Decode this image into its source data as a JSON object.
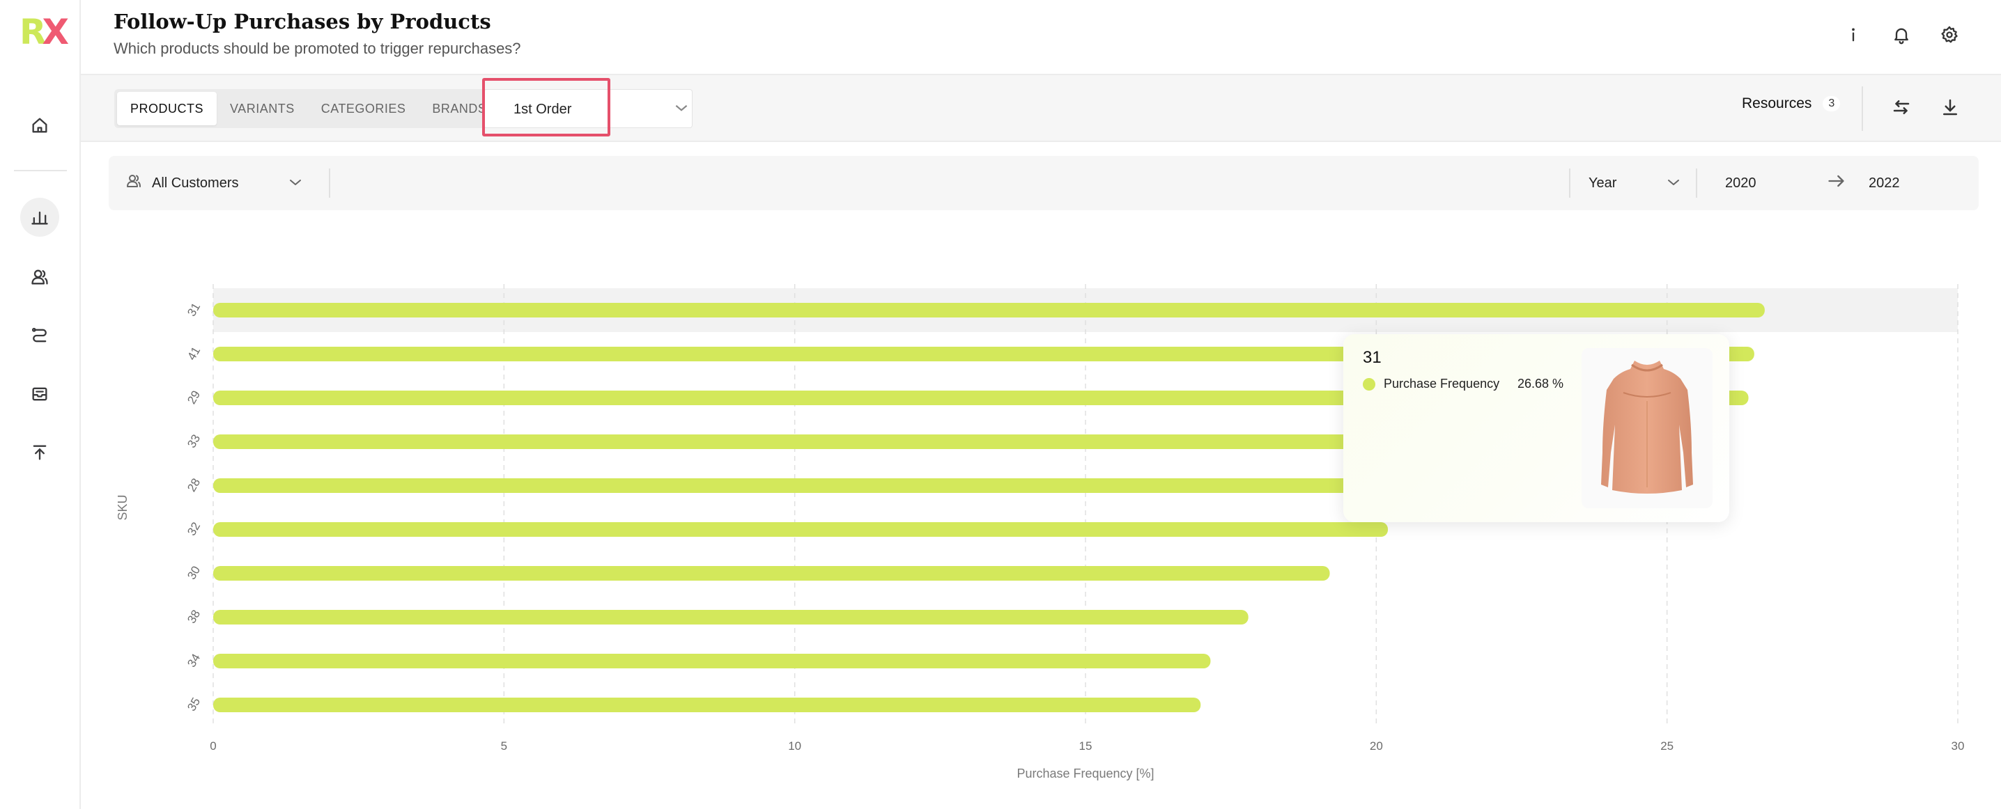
{
  "app": {
    "logo_r": "R",
    "logo_x": "X"
  },
  "header": {
    "title": "Follow-Up Purchases by Products",
    "subtitle": "Which products should be promoted to trigger repurchases?"
  },
  "sidebar": {
    "items": [
      {
        "icon": "home-icon",
        "active": false
      },
      {
        "icon": "bar-chart-icon",
        "active": true
      },
      {
        "icon": "users-icon",
        "active": false
      },
      {
        "icon": "route-icon",
        "active": false
      },
      {
        "icon": "inbox-icon",
        "active": false
      },
      {
        "icon": "upload-icon",
        "active": false
      }
    ]
  },
  "toolbar": {
    "tabs": [
      {
        "label": "PRODUCTS",
        "active": true
      },
      {
        "label": "VARIANTS",
        "active": false
      },
      {
        "label": "CATEGORIES",
        "active": false
      },
      {
        "label": "BRANDS",
        "active": false
      }
    ],
    "order_select": "1st Order",
    "resources_label": "Resources",
    "resources_count": "3"
  },
  "filters": {
    "segment": "All Customers",
    "granularity": "Year",
    "from": "2020",
    "to": "2022"
  },
  "colors": {
    "bar": "#d3e85b",
    "highlight": "#e5506b",
    "accent_red": "#ef5a72",
    "accent_green": "#cde85a"
  },
  "chart_data": {
    "type": "bar",
    "orientation": "horizontal",
    "categories": [
      "31",
      "41",
      "29",
      "33",
      "28",
      "32",
      "30",
      "38",
      "34",
      "35"
    ],
    "values": [
      26.68,
      26.5,
      26.4,
      24.6,
      22.3,
      20.2,
      19.2,
      17.8,
      17.15,
      16.98
    ],
    "xlabel": "Purchase Frequency [%]",
    "ylabel": "SKU",
    "xlim": [
      0,
      30
    ],
    "xticks": [
      "0",
      "5",
      "10",
      "15",
      "20",
      "25",
      "30"
    ],
    "grid": true,
    "highlighted_category": "31"
  },
  "tooltip": {
    "title": "31",
    "series_label": "Purchase Frequency",
    "value": "26.68 %"
  }
}
